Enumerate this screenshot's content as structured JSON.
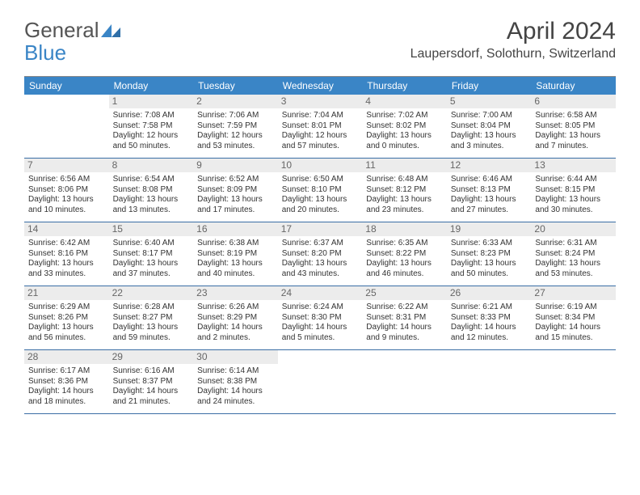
{
  "logo": {
    "word1": "General",
    "word2": "Blue"
  },
  "title": "April 2024",
  "location": "Laupersdorf, Solothurn, Switzerland",
  "colors": {
    "header_bg": "#3a85c6",
    "header_text": "#ffffff",
    "row_divider": "#3a6ea5",
    "daynum_bg": "#ececec",
    "daynum_text": "#666666",
    "body_text": "#333333"
  },
  "weekdays": [
    "Sunday",
    "Monday",
    "Tuesday",
    "Wednesday",
    "Thursday",
    "Friday",
    "Saturday"
  ],
  "weeks": [
    [
      null,
      {
        "n": "1",
        "sr": "7:08 AM",
        "ss": "7:58 PM",
        "dl1": "12 hours",
        "dl2": "and 50 minutes."
      },
      {
        "n": "2",
        "sr": "7:06 AM",
        "ss": "7:59 PM",
        "dl1": "12 hours",
        "dl2": "and 53 minutes."
      },
      {
        "n": "3",
        "sr": "7:04 AM",
        "ss": "8:01 PM",
        "dl1": "12 hours",
        "dl2": "and 57 minutes."
      },
      {
        "n": "4",
        "sr": "7:02 AM",
        "ss": "8:02 PM",
        "dl1": "13 hours",
        "dl2": "and 0 minutes."
      },
      {
        "n": "5",
        "sr": "7:00 AM",
        "ss": "8:04 PM",
        "dl1": "13 hours",
        "dl2": "and 3 minutes."
      },
      {
        "n": "6",
        "sr": "6:58 AM",
        "ss": "8:05 PM",
        "dl1": "13 hours",
        "dl2": "and 7 minutes."
      }
    ],
    [
      {
        "n": "7",
        "sr": "6:56 AM",
        "ss": "8:06 PM",
        "dl1": "13 hours",
        "dl2": "and 10 minutes."
      },
      {
        "n": "8",
        "sr": "6:54 AM",
        "ss": "8:08 PM",
        "dl1": "13 hours",
        "dl2": "and 13 minutes."
      },
      {
        "n": "9",
        "sr": "6:52 AM",
        "ss": "8:09 PM",
        "dl1": "13 hours",
        "dl2": "and 17 minutes."
      },
      {
        "n": "10",
        "sr": "6:50 AM",
        "ss": "8:10 PM",
        "dl1": "13 hours",
        "dl2": "and 20 minutes."
      },
      {
        "n": "11",
        "sr": "6:48 AM",
        "ss": "8:12 PM",
        "dl1": "13 hours",
        "dl2": "and 23 minutes."
      },
      {
        "n": "12",
        "sr": "6:46 AM",
        "ss": "8:13 PM",
        "dl1": "13 hours",
        "dl2": "and 27 minutes."
      },
      {
        "n": "13",
        "sr": "6:44 AM",
        "ss": "8:15 PM",
        "dl1": "13 hours",
        "dl2": "and 30 minutes."
      }
    ],
    [
      {
        "n": "14",
        "sr": "6:42 AM",
        "ss": "8:16 PM",
        "dl1": "13 hours",
        "dl2": "and 33 minutes."
      },
      {
        "n": "15",
        "sr": "6:40 AM",
        "ss": "8:17 PM",
        "dl1": "13 hours",
        "dl2": "and 37 minutes."
      },
      {
        "n": "16",
        "sr": "6:38 AM",
        "ss": "8:19 PM",
        "dl1": "13 hours",
        "dl2": "and 40 minutes."
      },
      {
        "n": "17",
        "sr": "6:37 AM",
        "ss": "8:20 PM",
        "dl1": "13 hours",
        "dl2": "and 43 minutes."
      },
      {
        "n": "18",
        "sr": "6:35 AM",
        "ss": "8:22 PM",
        "dl1": "13 hours",
        "dl2": "and 46 minutes."
      },
      {
        "n": "19",
        "sr": "6:33 AM",
        "ss": "8:23 PM",
        "dl1": "13 hours",
        "dl2": "and 50 minutes."
      },
      {
        "n": "20",
        "sr": "6:31 AM",
        "ss": "8:24 PM",
        "dl1": "13 hours",
        "dl2": "and 53 minutes."
      }
    ],
    [
      {
        "n": "21",
        "sr": "6:29 AM",
        "ss": "8:26 PM",
        "dl1": "13 hours",
        "dl2": "and 56 minutes."
      },
      {
        "n": "22",
        "sr": "6:28 AM",
        "ss": "8:27 PM",
        "dl1": "13 hours",
        "dl2": "and 59 minutes."
      },
      {
        "n": "23",
        "sr": "6:26 AM",
        "ss": "8:29 PM",
        "dl1": "14 hours",
        "dl2": "and 2 minutes."
      },
      {
        "n": "24",
        "sr": "6:24 AM",
        "ss": "8:30 PM",
        "dl1": "14 hours",
        "dl2": "and 5 minutes."
      },
      {
        "n": "25",
        "sr": "6:22 AM",
        "ss": "8:31 PM",
        "dl1": "14 hours",
        "dl2": "and 9 minutes."
      },
      {
        "n": "26",
        "sr": "6:21 AM",
        "ss": "8:33 PM",
        "dl1": "14 hours",
        "dl2": "and 12 minutes."
      },
      {
        "n": "27",
        "sr": "6:19 AM",
        "ss": "8:34 PM",
        "dl1": "14 hours",
        "dl2": "and 15 minutes."
      }
    ],
    [
      {
        "n": "28",
        "sr": "6:17 AM",
        "ss": "8:36 PM",
        "dl1": "14 hours",
        "dl2": "and 18 minutes."
      },
      {
        "n": "29",
        "sr": "6:16 AM",
        "ss": "8:37 PM",
        "dl1": "14 hours",
        "dl2": "and 21 minutes."
      },
      {
        "n": "30",
        "sr": "6:14 AM",
        "ss": "8:38 PM",
        "dl1": "14 hours",
        "dl2": "and 24 minutes."
      },
      null,
      null,
      null,
      null
    ]
  ],
  "labels": {
    "sunrise": "Sunrise:",
    "sunset": "Sunset:",
    "daylight": "Daylight:"
  }
}
